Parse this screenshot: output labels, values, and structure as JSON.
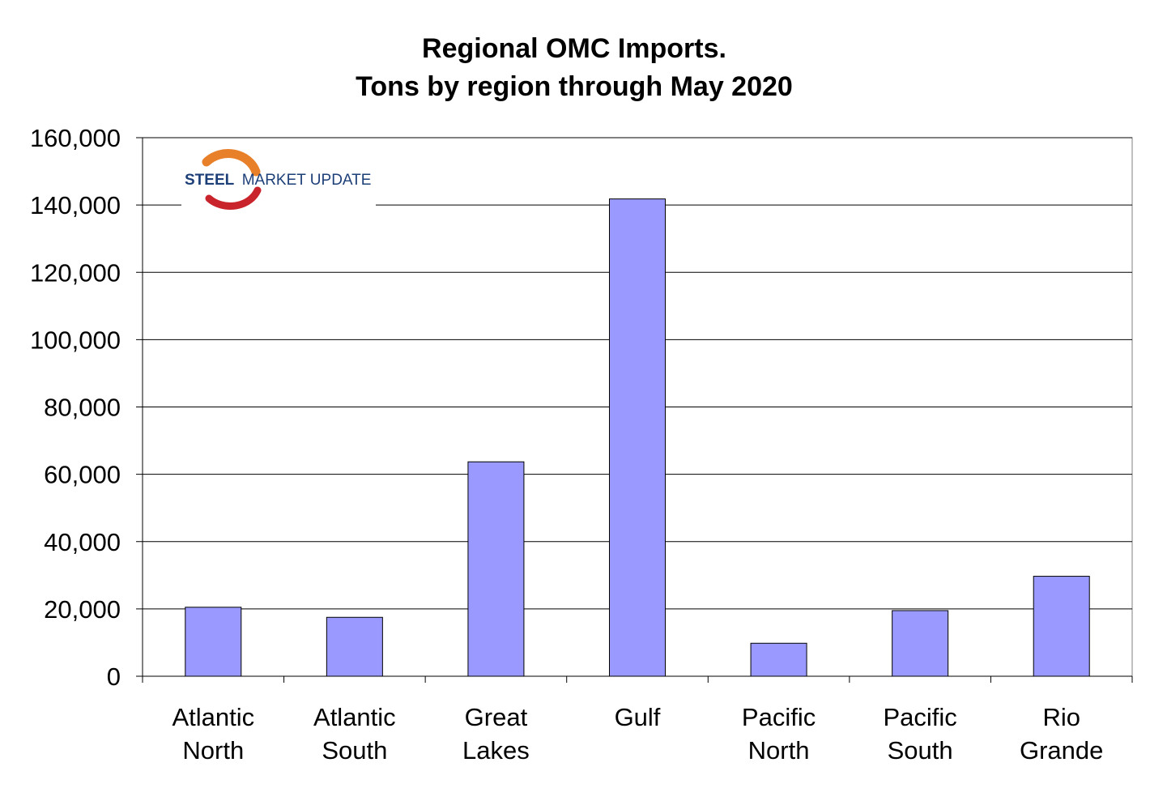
{
  "chart_data": {
    "type": "bar",
    "title_lines": [
      "Regional OMC Imports.",
      "Tons by region through May 2020"
    ],
    "categories": [
      [
        "Atlantic",
        "North"
      ],
      [
        "Atlantic",
        "South"
      ],
      [
        "Great",
        "Lakes"
      ],
      [
        "Gulf"
      ],
      [
        "Pacific",
        "North"
      ],
      [
        "Pacific",
        "South"
      ],
      [
        "Rio",
        "Grande"
      ]
    ],
    "values": [
      20500,
      17500,
      63700,
      141800,
      9800,
      19500,
      29700
    ],
    "ylim": [
      0,
      160000
    ],
    "yticks": [
      0,
      20000,
      40000,
      60000,
      80000,
      100000,
      120000,
      140000,
      160000
    ],
    "ytick_labels": [
      "0",
      "20,000",
      "40,000",
      "60,000",
      "80,000",
      "100,000",
      "120,000",
      "140,000",
      "160,000"
    ],
    "xlabel": "",
    "ylabel": "",
    "grid": true,
    "legend": "none",
    "colors": {
      "bar_fill": "#9999ff",
      "bar_stroke": "#000000",
      "grid": "#000000"
    }
  },
  "logo": {
    "text_bold": "STEEL",
    "text_regular": "MARKET UPDATE",
    "colors": {
      "text_bold": "#1d3f78",
      "text_regular": "#1d3f78",
      "arc_outer": "#e8802a",
      "arc_inner": "#c9242b"
    }
  }
}
